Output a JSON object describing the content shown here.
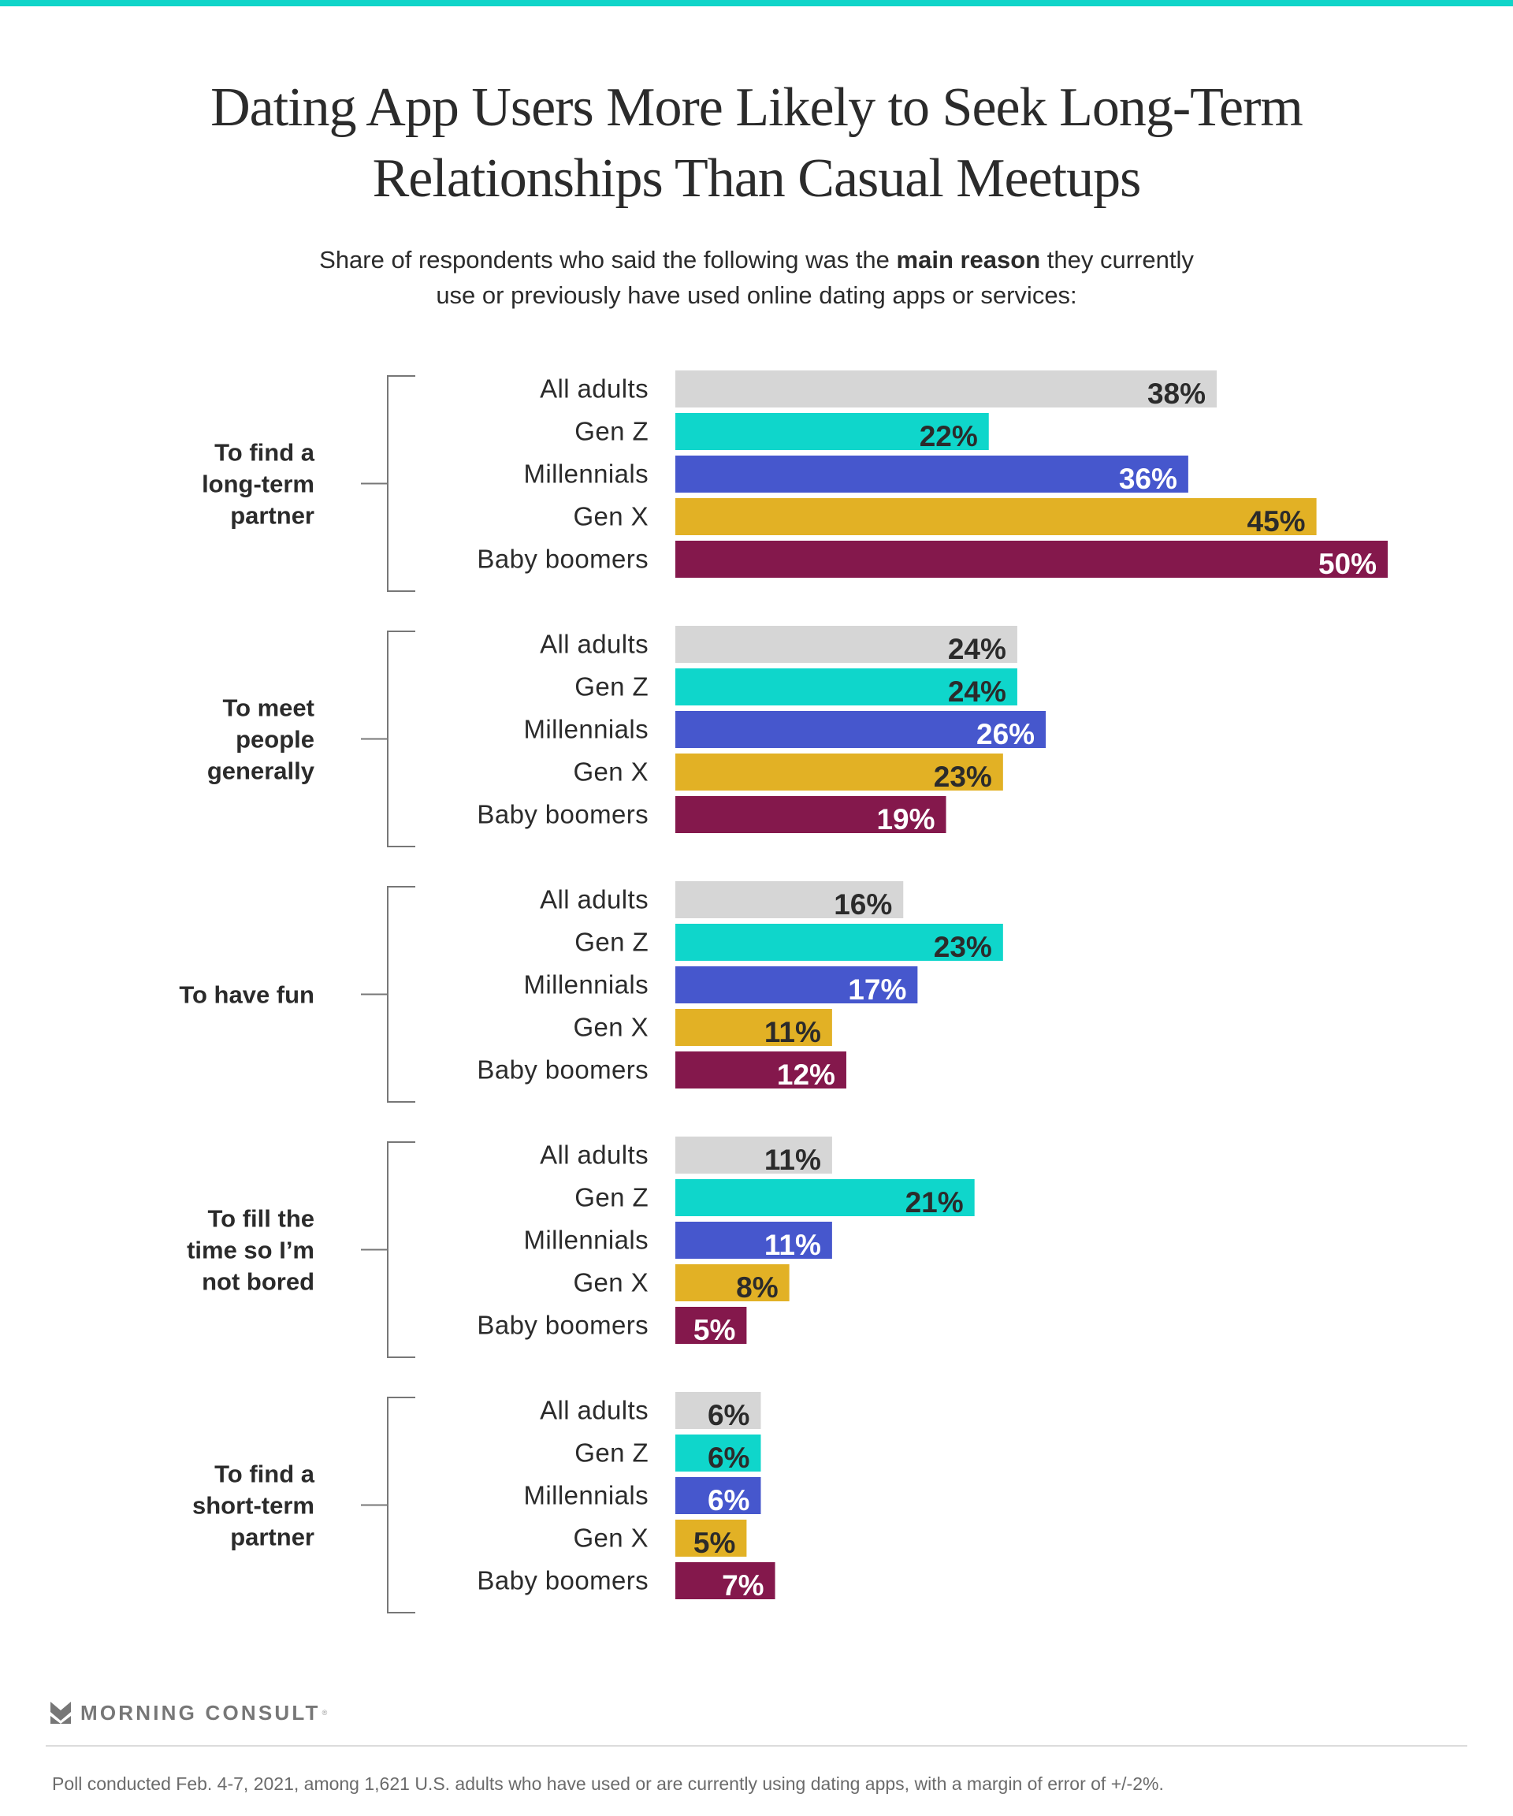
{
  "colors": {
    "accent_bar": "#10d5c9",
    "all_adults": "#d6d6d6",
    "gen_z": "#0fd6cb",
    "millennials": "#4657cd",
    "gen_x": "#e2b125",
    "baby_boomers": "#84184c",
    "text_dark": "#2b2b2b",
    "text_light": "#ffffff",
    "bracket": "#777777"
  },
  "header": {
    "title_line1": "Dating App Users More Likely to Seek Long-Term",
    "title_line2": "Relationships Than Casual Meetups",
    "subtitle_line1_pre": "Share of respondents who said the following was the ",
    "subtitle_line1_bold": "main reason",
    "subtitle_line1_post": " they currently",
    "subtitle_line2": "use or previously have used online dating apps or services:"
  },
  "chart_data": {
    "type": "bar",
    "orientation": "horizontal",
    "unit": "%",
    "title": "Dating App Users More Likely to Seek Long-Term Relationships Than Casual Meetups",
    "xlim": [
      0,
      50
    ],
    "grid": false,
    "series_names": [
      "All adults",
      "Gen Z",
      "Millennials",
      "Gen X",
      "Baby boomers"
    ],
    "series_keys": [
      "all_adults",
      "gen_z",
      "millennials",
      "gen_x",
      "baby_boomers"
    ],
    "label_color_keys": [
      "text_dark",
      "text_dark",
      "text_light",
      "text_dark",
      "text_light"
    ],
    "groups": [
      {
        "label_lines": [
          "To find a",
          "long-term",
          "partner"
        ],
        "values": [
          38,
          22,
          36,
          45,
          50
        ],
        "labels": [
          "38%",
          "22%",
          "36%",
          "45%",
          "50%"
        ]
      },
      {
        "label_lines": [
          "To meet",
          "people",
          "generally"
        ],
        "values": [
          24,
          24,
          26,
          23,
          19
        ],
        "labels": [
          "24%",
          "24%",
          "26%",
          "23%",
          "19%"
        ]
      },
      {
        "label_lines": [
          "To have fun"
        ],
        "values": [
          16,
          23,
          17,
          11,
          12
        ],
        "labels": [
          "16%",
          "23%",
          "17%",
          "11%",
          "12%"
        ]
      },
      {
        "label_lines": [
          "To fill the",
          "time so I’m",
          "not bored"
        ],
        "values": [
          11,
          21,
          11,
          8,
          5
        ],
        "labels": [
          "11%",
          "21%",
          "11%",
          "8%",
          "5%"
        ]
      },
      {
        "label_lines": [
          "To find a",
          "short-term",
          "partner"
        ],
        "values": [
          6,
          6,
          6,
          5,
          7
        ],
        "labels": [
          "6%",
          "6%",
          "6%",
          "5%",
          "7%"
        ]
      }
    ]
  },
  "footer": {
    "brand": "MORNING CONSULT",
    "brand_mark": "®",
    "note": "Poll conducted Feb. 4-7, 2021, among 1,621 U.S. adults who have used or are currently using dating apps, with a margin of error of +/-2%."
  }
}
